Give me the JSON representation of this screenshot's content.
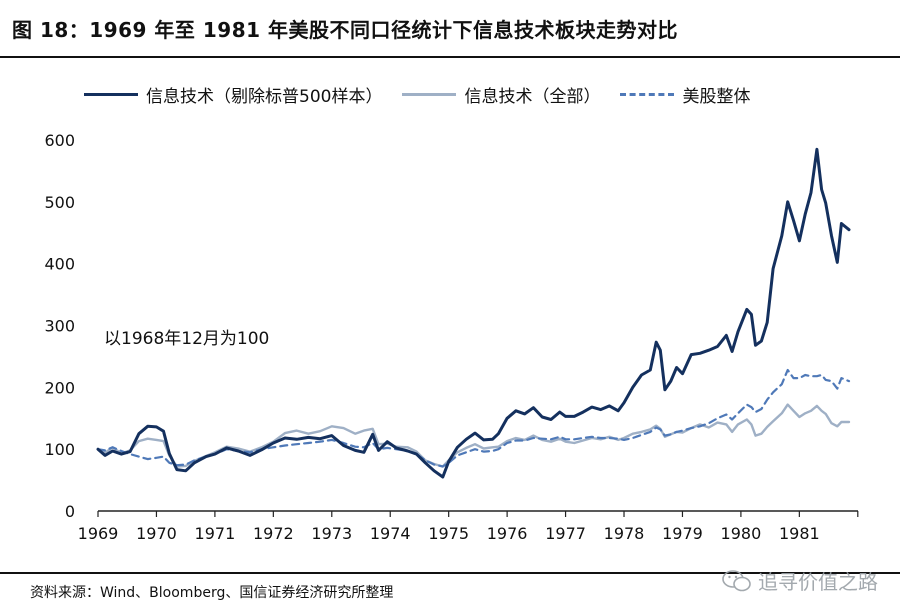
{
  "figure": {
    "title": "图 18：1969 年至 1981 年美股不同口径统计下信息技术板块走势对比",
    "annotation": "以1968年12月为100",
    "source": "资料来源：Wind、Bloomberg、国信证券经济研究所整理",
    "watermark": "追寻价值之路"
  },
  "colors": {
    "it_ex": "#14305e",
    "it_all": "#9fb0c6",
    "market": "#4f79b8"
  },
  "chart_data": {
    "type": "line",
    "title": "",
    "xlabel": "",
    "ylabel": "",
    "x_ticks": [
      "1969",
      "1970",
      "1971",
      "1972",
      "1973",
      "1974",
      "1975",
      "1976",
      "1977",
      "1978",
      "1979",
      "1980",
      "1981"
    ],
    "y_ticks": [
      0,
      100,
      200,
      300,
      400,
      500,
      600
    ],
    "ylim": [
      0,
      600
    ],
    "xlim": [
      1969,
      1982
    ],
    "grid": false,
    "legend_position": "top",
    "series": [
      {
        "key": "it_ex",
        "name": "信息技术（剔除标普500样本）",
        "style": "solid",
        "points": [
          [
            1969.0,
            100
          ],
          [
            1969.12,
            90
          ],
          [
            1969.25,
            97
          ],
          [
            1969.4,
            92
          ],
          [
            1969.55,
            96
          ],
          [
            1969.7,
            125
          ],
          [
            1969.85,
            137
          ],
          [
            1970.0,
            136
          ],
          [
            1970.12,
            129
          ],
          [
            1970.22,
            93
          ],
          [
            1970.35,
            67
          ],
          [
            1970.5,
            65
          ],
          [
            1970.65,
            78
          ],
          [
            1970.85,
            88
          ],
          [
            1971.0,
            92
          ],
          [
            1971.2,
            102
          ],
          [
            1971.4,
            97
          ],
          [
            1971.6,
            90
          ],
          [
            1971.8,
            99
          ],
          [
            1972.0,
            110
          ],
          [
            1972.2,
            118
          ],
          [
            1972.4,
            116
          ],
          [
            1972.6,
            119
          ],
          [
            1972.8,
            117
          ],
          [
            1973.0,
            122
          ],
          [
            1973.2,
            106
          ],
          [
            1973.4,
            98
          ],
          [
            1973.55,
            95
          ],
          [
            1973.7,
            124
          ],
          [
            1973.8,
            98
          ],
          [
            1973.95,
            112
          ],
          [
            1974.1,
            102
          ],
          [
            1974.3,
            97
          ],
          [
            1974.45,
            92
          ],
          [
            1974.6,
            78
          ],
          [
            1974.75,
            65
          ],
          [
            1974.9,
            55
          ],
          [
            1975.0,
            80
          ],
          [
            1975.15,
            103
          ],
          [
            1975.3,
            116
          ],
          [
            1975.45,
            126
          ],
          [
            1975.6,
            115
          ],
          [
            1975.75,
            116
          ],
          [
            1975.85,
            125
          ],
          [
            1976.0,
            150
          ],
          [
            1976.15,
            162
          ],
          [
            1976.3,
            157
          ],
          [
            1976.45,
            167
          ],
          [
            1976.6,
            152
          ],
          [
            1976.75,
            148
          ],
          [
            1976.9,
            160
          ],
          [
            1977.0,
            153
          ],
          [
            1977.15,
            153
          ],
          [
            1977.3,
            160
          ],
          [
            1977.45,
            168
          ],
          [
            1977.6,
            164
          ],
          [
            1977.75,
            170
          ],
          [
            1977.9,
            162
          ],
          [
            1978.0,
            175
          ],
          [
            1978.15,
            200
          ],
          [
            1978.3,
            220
          ],
          [
            1978.45,
            228
          ],
          [
            1978.55,
            273
          ],
          [
            1978.62,
            260
          ],
          [
            1978.7,
            196
          ],
          [
            1978.8,
            210
          ],
          [
            1978.9,
            232
          ],
          [
            1979.0,
            222
          ],
          [
            1979.15,
            253
          ],
          [
            1979.3,
            255
          ],
          [
            1979.45,
            260
          ],
          [
            1979.6,
            266
          ],
          [
            1979.75,
            284
          ],
          [
            1979.85,
            258
          ],
          [
            1979.95,
            290
          ],
          [
            1980.1,
            326
          ],
          [
            1980.18,
            318
          ],
          [
            1980.25,
            268
          ],
          [
            1980.35,
            275
          ],
          [
            1980.45,
            305
          ],
          [
            1980.55,
            392
          ],
          [
            1980.7,
            445
          ],
          [
            1980.8,
            500
          ],
          [
            1980.9,
            470
          ],
          [
            1981.0,
            437
          ],
          [
            1981.1,
            480
          ],
          [
            1981.2,
            515
          ],
          [
            1981.3,
            585
          ],
          [
            1981.38,
            520
          ],
          [
            1981.45,
            498
          ],
          [
            1981.55,
            445
          ],
          [
            1981.65,
            402
          ],
          [
            1981.72,
            465
          ],
          [
            1981.85,
            455
          ]
        ]
      },
      {
        "key": "it_all",
        "name": "信息技术（全部）",
        "style": "solid",
        "points": [
          [
            1969.0,
            100
          ],
          [
            1969.12,
            94
          ],
          [
            1969.25,
            103
          ],
          [
            1969.4,
            93
          ],
          [
            1969.55,
            98
          ],
          [
            1969.7,
            113
          ],
          [
            1969.85,
            117
          ],
          [
            1970.0,
            115
          ],
          [
            1970.12,
            113
          ],
          [
            1970.22,
            90
          ],
          [
            1970.35,
            72
          ],
          [
            1970.5,
            73
          ],
          [
            1970.65,
            81
          ],
          [
            1970.85,
            89
          ],
          [
            1971.0,
            95
          ],
          [
            1971.2,
            104
          ],
          [
            1971.4,
            101
          ],
          [
            1971.6,
            96
          ],
          [
            1971.8,
            103
          ],
          [
            1972.0,
            112
          ],
          [
            1972.2,
            126
          ],
          [
            1972.4,
            130
          ],
          [
            1972.6,
            125
          ],
          [
            1972.8,
            129
          ],
          [
            1973.0,
            137
          ],
          [
            1973.2,
            134
          ],
          [
            1973.4,
            125
          ],
          [
            1973.55,
            130
          ],
          [
            1973.7,
            133
          ],
          [
            1973.8,
            108
          ],
          [
            1973.95,
            109
          ],
          [
            1974.1,
            104
          ],
          [
            1974.3,
            103
          ],
          [
            1974.45,
            96
          ],
          [
            1974.6,
            82
          ],
          [
            1974.75,
            76
          ],
          [
            1974.9,
            72
          ],
          [
            1975.0,
            82
          ],
          [
            1975.15,
            95
          ],
          [
            1975.3,
            102
          ],
          [
            1975.45,
            108
          ],
          [
            1975.6,
            101
          ],
          [
            1975.75,
            103
          ],
          [
            1975.85,
            104
          ],
          [
            1976.0,
            113
          ],
          [
            1976.15,
            118
          ],
          [
            1976.3,
            115
          ],
          [
            1976.45,
            122
          ],
          [
            1976.6,
            115
          ],
          [
            1976.75,
            112
          ],
          [
            1976.9,
            117
          ],
          [
            1977.0,
            112
          ],
          [
            1977.15,
            110
          ],
          [
            1977.3,
            114
          ],
          [
            1977.45,
            118
          ],
          [
            1977.6,
            116
          ],
          [
            1977.75,
            120
          ],
          [
            1977.9,
            115
          ],
          [
            1978.0,
            118
          ],
          [
            1978.15,
            125
          ],
          [
            1978.3,
            128
          ],
          [
            1978.45,
            132
          ],
          [
            1978.55,
            138
          ],
          [
            1978.62,
            133
          ],
          [
            1978.7,
            120
          ],
          [
            1978.8,
            124
          ],
          [
            1978.9,
            128
          ],
          [
            1979.0,
            127
          ],
          [
            1979.15,
            134
          ],
          [
            1979.3,
            140
          ],
          [
            1979.45,
            135
          ],
          [
            1979.6,
            143
          ],
          [
            1979.75,
            140
          ],
          [
            1979.85,
            128
          ],
          [
            1979.95,
            140
          ],
          [
            1980.1,
            148
          ],
          [
            1980.18,
            140
          ],
          [
            1980.25,
            122
          ],
          [
            1980.35,
            125
          ],
          [
            1980.45,
            136
          ],
          [
            1980.55,
            145
          ],
          [
            1980.7,
            158
          ],
          [
            1980.8,
            172
          ],
          [
            1980.9,
            162
          ],
          [
            1981.0,
            152
          ],
          [
            1981.1,
            158
          ],
          [
            1981.2,
            162
          ],
          [
            1981.3,
            170
          ],
          [
            1981.38,
            162
          ],
          [
            1981.45,
            157
          ],
          [
            1981.55,
            142
          ],
          [
            1981.65,
            137
          ],
          [
            1981.72,
            144
          ],
          [
            1981.85,
            144
          ]
        ]
      },
      {
        "key": "market",
        "name": "美股整体",
        "style": "dashed",
        "points": [
          [
            1969.0,
            100
          ],
          [
            1969.12,
            98
          ],
          [
            1969.25,
            103
          ],
          [
            1969.4,
            97
          ],
          [
            1969.55,
            92
          ],
          [
            1969.7,
            88
          ],
          [
            1969.85,
            84
          ],
          [
            1970.0,
            86
          ],
          [
            1970.12,
            88
          ],
          [
            1970.22,
            78
          ],
          [
            1970.35,
            74
          ],
          [
            1970.5,
            75
          ],
          [
            1970.65,
            82
          ],
          [
            1970.85,
            88
          ],
          [
            1971.0,
            92
          ],
          [
            1971.2,
            100
          ],
          [
            1971.4,
            97
          ],
          [
            1971.6,
            95
          ],
          [
            1971.8,
            100
          ],
          [
            1972.0,
            103
          ],
          [
            1972.2,
            106
          ],
          [
            1972.4,
            108
          ],
          [
            1972.6,
            110
          ],
          [
            1972.8,
            112
          ],
          [
            1973.0,
            115
          ],
          [
            1973.2,
            110
          ],
          [
            1973.4,
            104
          ],
          [
            1973.55,
            103
          ],
          [
            1973.7,
            110
          ],
          [
            1973.8,
            100
          ],
          [
            1973.95,
            102
          ],
          [
            1974.1,
            100
          ],
          [
            1974.3,
            97
          ],
          [
            1974.45,
            92
          ],
          [
            1974.6,
            82
          ],
          [
            1974.75,
            75
          ],
          [
            1974.9,
            72
          ],
          [
            1975.0,
            78
          ],
          [
            1975.15,
            90
          ],
          [
            1975.3,
            95
          ],
          [
            1975.45,
            100
          ],
          [
            1975.6,
            96
          ],
          [
            1975.75,
            97
          ],
          [
            1975.85,
            100
          ],
          [
            1976.0,
            110
          ],
          [
            1976.15,
            114
          ],
          [
            1976.3,
            114
          ],
          [
            1976.45,
            118
          ],
          [
            1976.6,
            117
          ],
          [
            1976.75,
            116
          ],
          [
            1976.9,
            120
          ],
          [
            1977.0,
            116
          ],
          [
            1977.15,
            116
          ],
          [
            1977.3,
            118
          ],
          [
            1977.45,
            120
          ],
          [
            1977.6,
            118
          ],
          [
            1977.75,
            118
          ],
          [
            1977.9,
            117
          ],
          [
            1978.0,
            115
          ],
          [
            1978.15,
            118
          ],
          [
            1978.3,
            123
          ],
          [
            1978.45,
            128
          ],
          [
            1978.55,
            135
          ],
          [
            1978.62,
            132
          ],
          [
            1978.7,
            122
          ],
          [
            1978.8,
            124
          ],
          [
            1978.9,
            128
          ],
          [
            1979.0,
            130
          ],
          [
            1979.15,
            134
          ],
          [
            1979.3,
            137
          ],
          [
            1979.45,
            142
          ],
          [
            1979.6,
            150
          ],
          [
            1979.75,
            156
          ],
          [
            1979.85,
            148
          ],
          [
            1979.95,
            158
          ],
          [
            1980.1,
            172
          ],
          [
            1980.18,
            168
          ],
          [
            1980.25,
            160
          ],
          [
            1980.35,
            165
          ],
          [
            1980.45,
            180
          ],
          [
            1980.55,
            192
          ],
          [
            1980.7,
            205
          ],
          [
            1980.8,
            228
          ],
          [
            1980.9,
            215
          ],
          [
            1981.0,
            215
          ],
          [
            1981.1,
            220
          ],
          [
            1981.2,
            218
          ],
          [
            1981.3,
            218
          ],
          [
            1981.38,
            220
          ],
          [
            1981.45,
            212
          ],
          [
            1981.55,
            210
          ],
          [
            1981.65,
            198
          ],
          [
            1981.72,
            215
          ],
          [
            1981.85,
            210
          ]
        ]
      }
    ]
  }
}
